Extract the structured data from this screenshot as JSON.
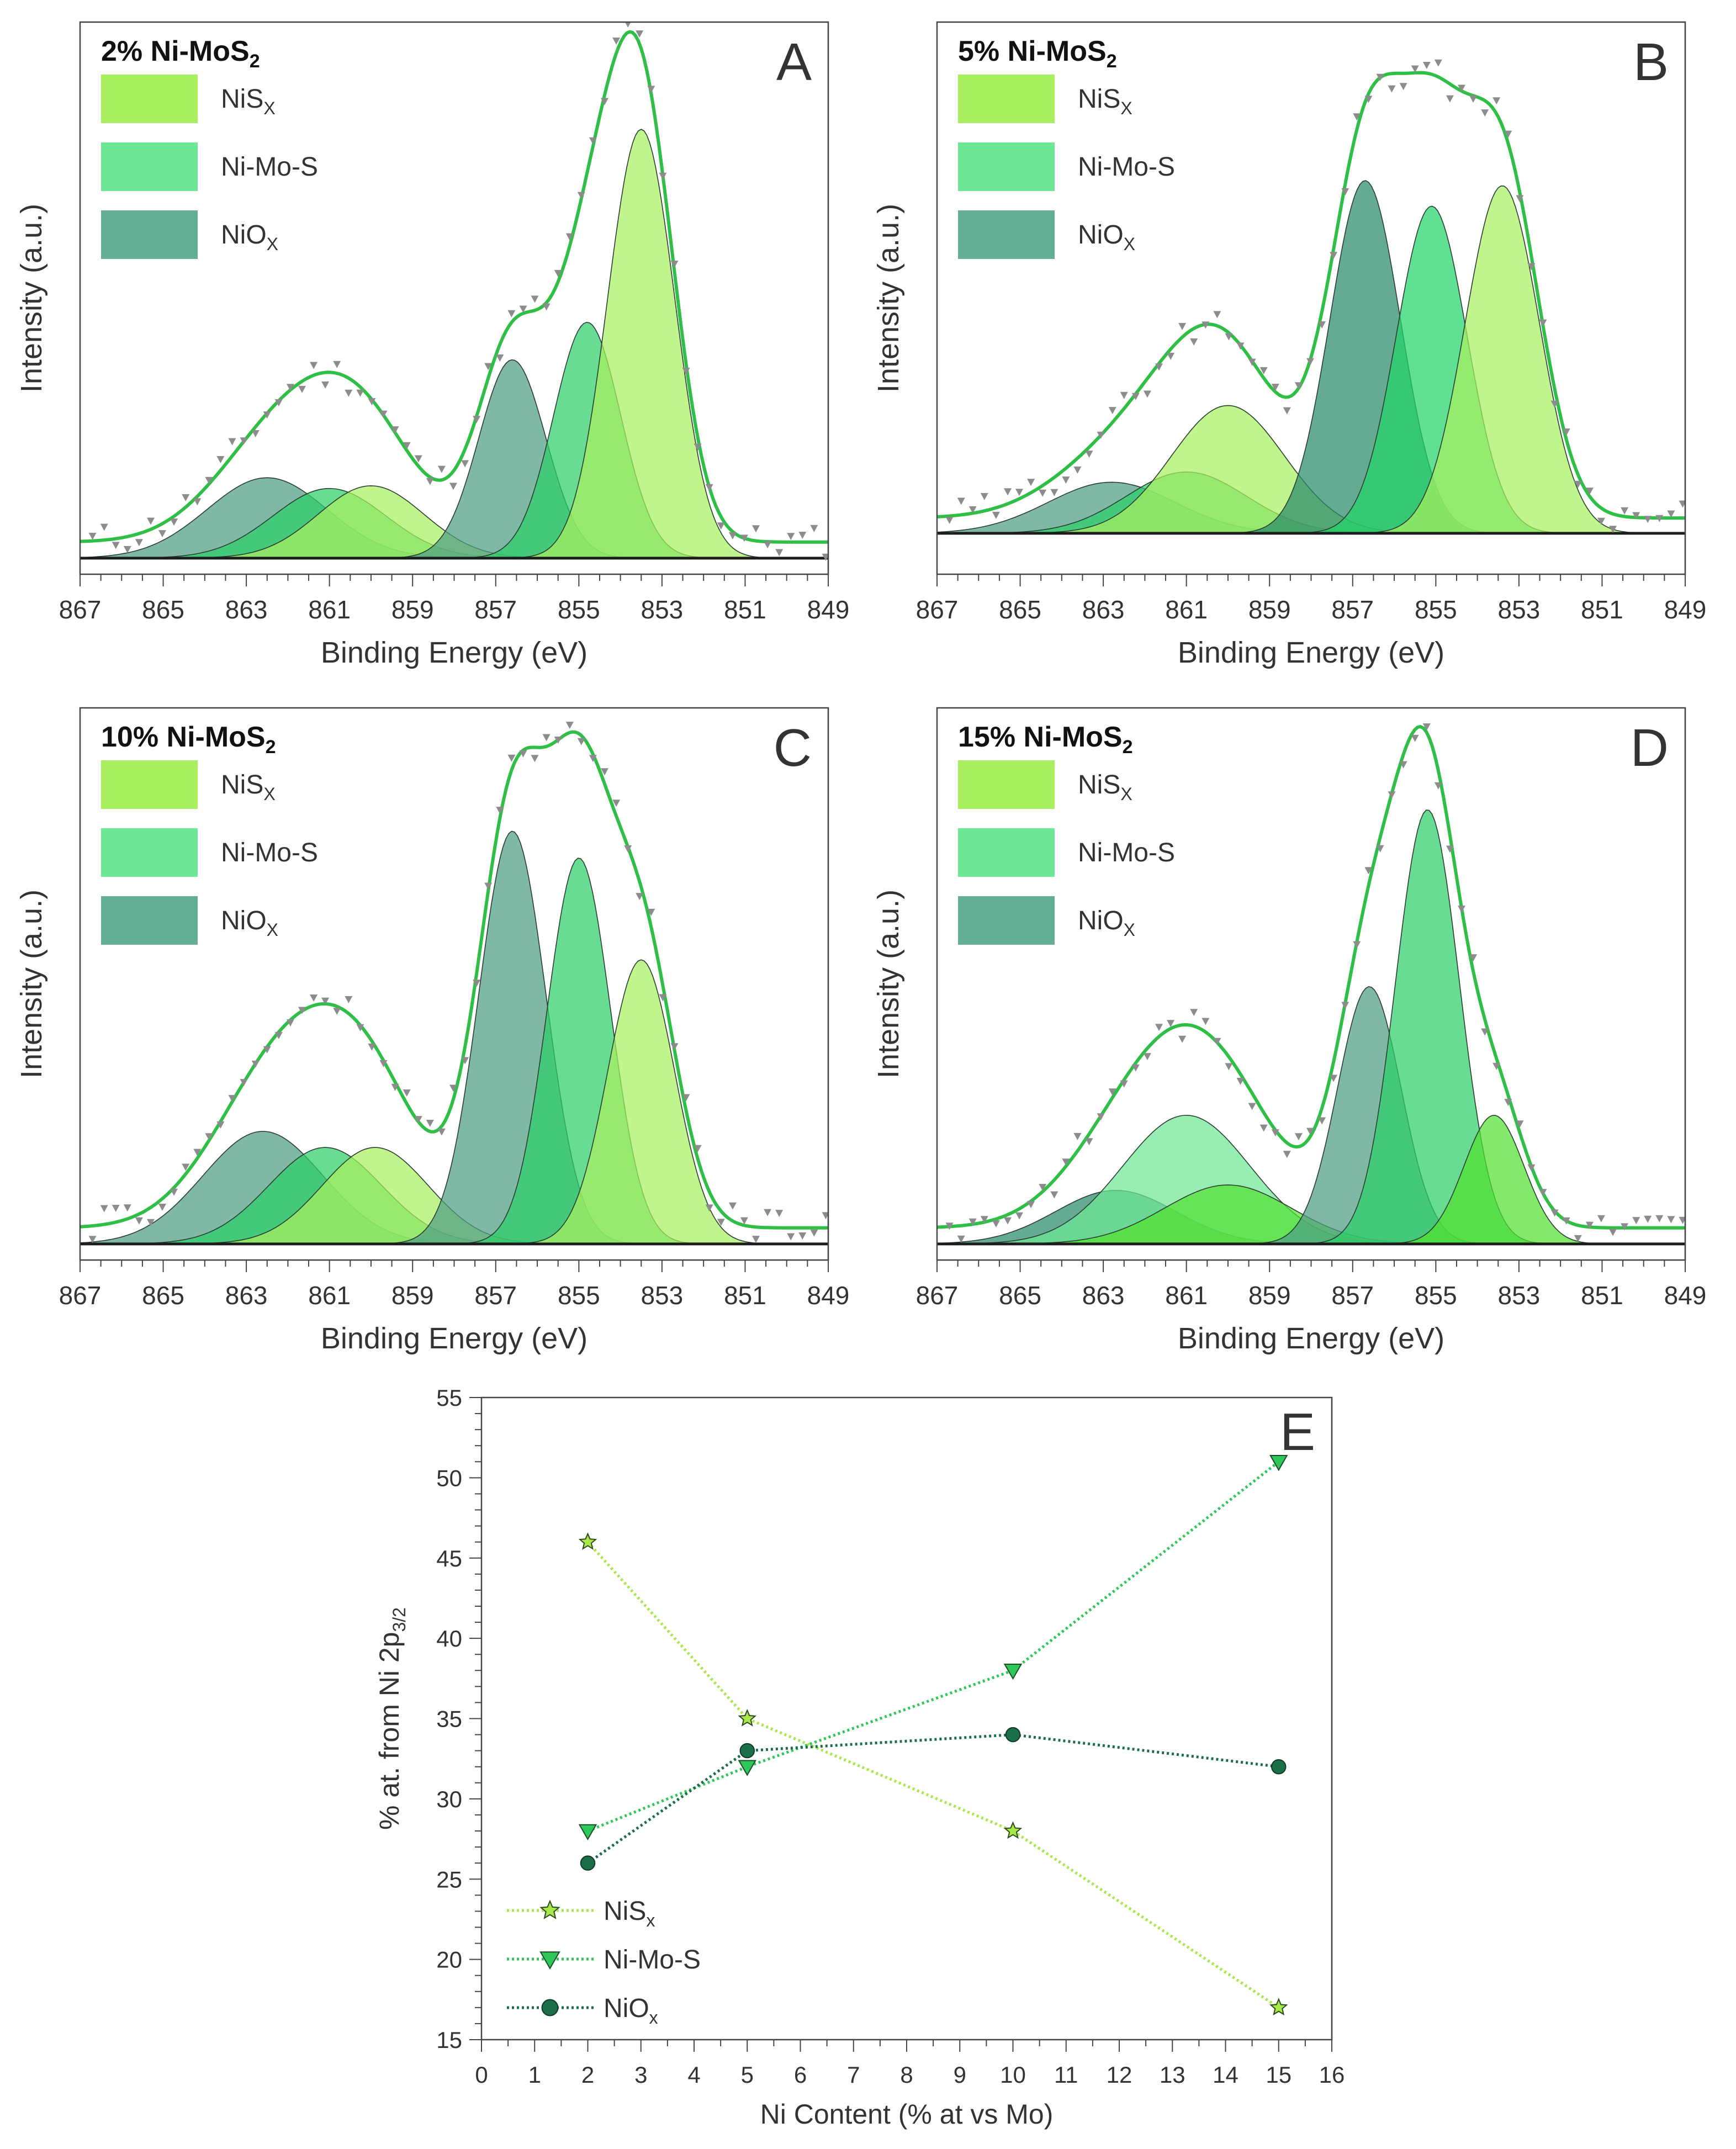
{
  "chart_data": [
    {
      "panel": "A",
      "type": "line",
      "title": "2% Ni-MoS",
      "title_sub": "2",
      "xlabel": "Binding Energy (eV)",
      "ylabel": "Intensity (a.u.)",
      "xlim": [
        867,
        849
      ],
      "ylim": [
        -0.03,
        1.0
      ],
      "xticks": [
        867,
        865,
        863,
        861,
        859,
        857,
        855,
        853,
        851,
        849
      ],
      "legend": [
        {
          "label": "NiS",
          "sub": "X",
          "color": "#a8f060"
        },
        {
          "label": "Ni-Mo-S",
          "sub": "",
          "color": "#6ee896"
        },
        {
          "label": "NiO",
          "sub": "X",
          "color": "#64ae96"
        }
      ],
      "components": [
        {
          "name": "NiOx",
          "center": 862.5,
          "height": 0.15,
          "fwhm": 3.4,
          "color": "#4e9e84"
        },
        {
          "name": "Ni-Mo-S",
          "center": 861.0,
          "height": 0.13,
          "fwhm": 3.2,
          "color": "#2ecf6a"
        },
        {
          "name": "NiSx",
          "center": 860.0,
          "height": 0.135,
          "fwhm": 3.0,
          "color": "#a8f060"
        },
        {
          "name": "NiOx",
          "center": 856.6,
          "height": 0.37,
          "fwhm": 1.9,
          "color": "#4e9e84"
        },
        {
          "name": "Ni-Mo-S",
          "center": 854.8,
          "height": 0.44,
          "fwhm": 1.9,
          "color": "#2ecf6a"
        },
        {
          "name": "NiSx",
          "center": 853.5,
          "height": 0.8,
          "fwhm": 1.9,
          "color": "#a8f060"
        }
      ]
    },
    {
      "panel": "B",
      "type": "line",
      "title": "5% Ni-MoS",
      "title_sub": "2",
      "xlabel": "Binding Energy (eV)",
      "ylabel": "Intensity (a.u.)",
      "xlim": [
        867,
        849
      ],
      "ylim": [
        -0.08,
        1.0
      ],
      "xticks": [
        867,
        865,
        863,
        861,
        859,
        857,
        855,
        853,
        851,
        849
      ],
      "legend": [
        {
          "label": "NiS",
          "sub": "X",
          "color": "#a8f060"
        },
        {
          "label": "Ni-Mo-S",
          "sub": "",
          "color": "#6ee896"
        },
        {
          "label": "NiO",
          "sub": "X",
          "color": "#64ae96"
        }
      ],
      "components": [
        {
          "name": "NiOx",
          "center": 862.8,
          "height": 0.1,
          "fwhm": 3.6,
          "color": "#4e9e84"
        },
        {
          "name": "Ni-Mo-S",
          "center": 861.0,
          "height": 0.12,
          "fwhm": 3.4,
          "color": "#2ecf6a"
        },
        {
          "name": "NiSx",
          "center": 860.0,
          "height": 0.25,
          "fwhm": 3.2,
          "color": "#a8f060"
        },
        {
          "name": "NiOx",
          "center": 856.7,
          "height": 0.69,
          "fwhm": 2.0,
          "color": "#2a8a6a"
        },
        {
          "name": "Ni-Mo-S",
          "center": 855.1,
          "height": 0.64,
          "fwhm": 2.0,
          "color": "#22d46a"
        },
        {
          "name": "NiSx",
          "center": 853.4,
          "height": 0.68,
          "fwhm": 2.1,
          "color": "#a8f060"
        }
      ]
    },
    {
      "panel": "C",
      "type": "line",
      "title": "10% Ni-MoS",
      "title_sub": "2",
      "xlabel": "Binding Energy (eV)",
      "ylabel": "Intensity (a.u.)",
      "xlim": [
        867,
        849
      ],
      "ylim": [
        -0.03,
        1.0
      ],
      "xticks": [
        867,
        865,
        863,
        861,
        859,
        857,
        855,
        853,
        851,
        849
      ],
      "legend": [
        {
          "label": "NiS",
          "sub": "X",
          "color": "#a8f060"
        },
        {
          "label": "Ni-Mo-S",
          "sub": "",
          "color": "#6ee896"
        },
        {
          "label": "NiO",
          "sub": "X",
          "color": "#64ae96"
        }
      ],
      "components": [
        {
          "name": "NiOx",
          "center": 862.6,
          "height": 0.21,
          "fwhm": 3.4,
          "color": "#4e9e84"
        },
        {
          "name": "Ni-Mo-S",
          "center": 861.1,
          "height": 0.18,
          "fwhm": 3.2,
          "color": "#2ecf6a"
        },
        {
          "name": "NiSx",
          "center": 859.9,
          "height": 0.18,
          "fwhm": 3.0,
          "color": "#a8f060"
        },
        {
          "name": "NiOx",
          "center": 856.6,
          "height": 0.77,
          "fwhm": 1.9,
          "color": "#4e9e84"
        },
        {
          "name": "Ni-Mo-S",
          "center": 855.0,
          "height": 0.72,
          "fwhm": 1.8,
          "color": "#2ecf6a"
        },
        {
          "name": "NiSx",
          "center": 853.5,
          "height": 0.53,
          "fwhm": 1.9,
          "color": "#a8f060"
        }
      ]
    },
    {
      "panel": "D",
      "type": "line",
      "title": "15% Ni-MoS",
      "title_sub": "2",
      "xlabel": "Binding Energy (eV)",
      "ylabel": "Intensity (a.u.)",
      "xlim": [
        867,
        849
      ],
      "ylim": [
        -0.03,
        1.0
      ],
      "xticks": [
        867,
        865,
        863,
        861,
        859,
        857,
        855,
        853,
        851,
        849
      ],
      "legend": [
        {
          "label": "NiS",
          "sub": "X",
          "color": "#a8f060"
        },
        {
          "label": "Ni-Mo-S",
          "sub": "",
          "color": "#6ee896"
        },
        {
          "label": "NiO",
          "sub": "X",
          "color": "#64ae96"
        }
      ],
      "components": [
        {
          "name": "NiOx",
          "center": 862.7,
          "height": 0.1,
          "fwhm": 3.4,
          "color": "#2a8a6a"
        },
        {
          "name": "Ni-Mo-S",
          "center": 861.0,
          "height": 0.24,
          "fwhm": 3.6,
          "color": "#6ee896"
        },
        {
          "name": "NiSx",
          "center": 860.0,
          "height": 0.11,
          "fwhm": 3.6,
          "color": "#52e030"
        },
        {
          "name": "NiOx",
          "center": 856.6,
          "height": 0.48,
          "fwhm": 1.8,
          "color": "#4e9e84"
        },
        {
          "name": "Ni-Mo-S",
          "center": 855.2,
          "height": 0.81,
          "fwhm": 1.8,
          "color": "#2ecf6a"
        },
        {
          "name": "NiSx",
          "center": 853.6,
          "height": 0.24,
          "fwhm": 1.7,
          "color": "#52e030"
        }
      ]
    },
    {
      "panel": "E",
      "type": "line",
      "xlabel": "Ni Content (% at vs Mo)",
      "ylabel": "% at. from Ni 2p",
      "ylabel_sub": "3/2",
      "xlim": [
        0,
        16
      ],
      "ylim": [
        15,
        55
      ],
      "xticks": [
        0,
        1,
        2,
        3,
        4,
        5,
        6,
        7,
        8,
        9,
        10,
        11,
        12,
        13,
        14,
        15,
        16
      ],
      "yticks": [
        15,
        20,
        25,
        30,
        35,
        40,
        45,
        50,
        55
      ],
      "x": [
        2,
        5,
        10,
        15
      ],
      "series": [
        {
          "name": "NiS",
          "sub": "x",
          "values": [
            46,
            35,
            28,
            17
          ],
          "marker": "star",
          "color": "#a8e84a"
        },
        {
          "name": "Ni-Mo-S",
          "sub": "",
          "values": [
            28,
            32,
            38,
            51
          ],
          "marker": "triangle-down",
          "color": "#2ec858"
        },
        {
          "name": "NiO",
          "sub": "x",
          "values": [
            26,
            33,
            34,
            32
          ],
          "marker": "circle",
          "color": "#1a6e48"
        }
      ]
    }
  ]
}
